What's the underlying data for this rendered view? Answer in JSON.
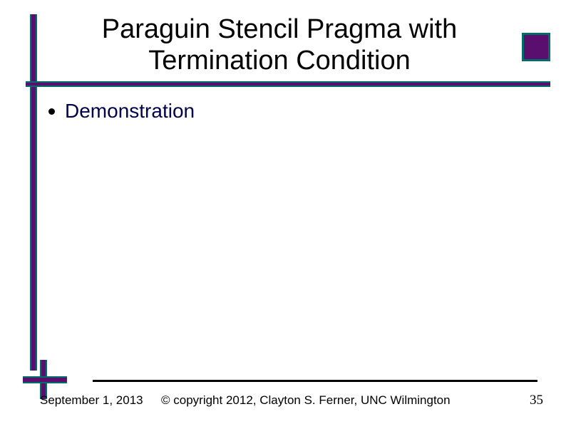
{
  "colors": {
    "teal": "#016c6a",
    "purple": "#5a0e6e",
    "black": "#000000",
    "body_text": "#00004a",
    "background": "#ffffff"
  },
  "layout": {
    "slide_width": 794,
    "slide_height": 595,
    "title_fontsize": 38,
    "bullet_fontsize": 28,
    "footer_fontsize": 17,
    "pagenum_fontsize": 19
  },
  "title": "Paraguin Stencil Pragma with Termination Condition",
  "bullets": [
    {
      "text": "Demonstration"
    }
  ],
  "footer": {
    "date": "September 1, 2013",
    "copyright": "© copyright 2012, Clayton S. Ferner, UNC Wilmington"
  },
  "page_number": "35"
}
